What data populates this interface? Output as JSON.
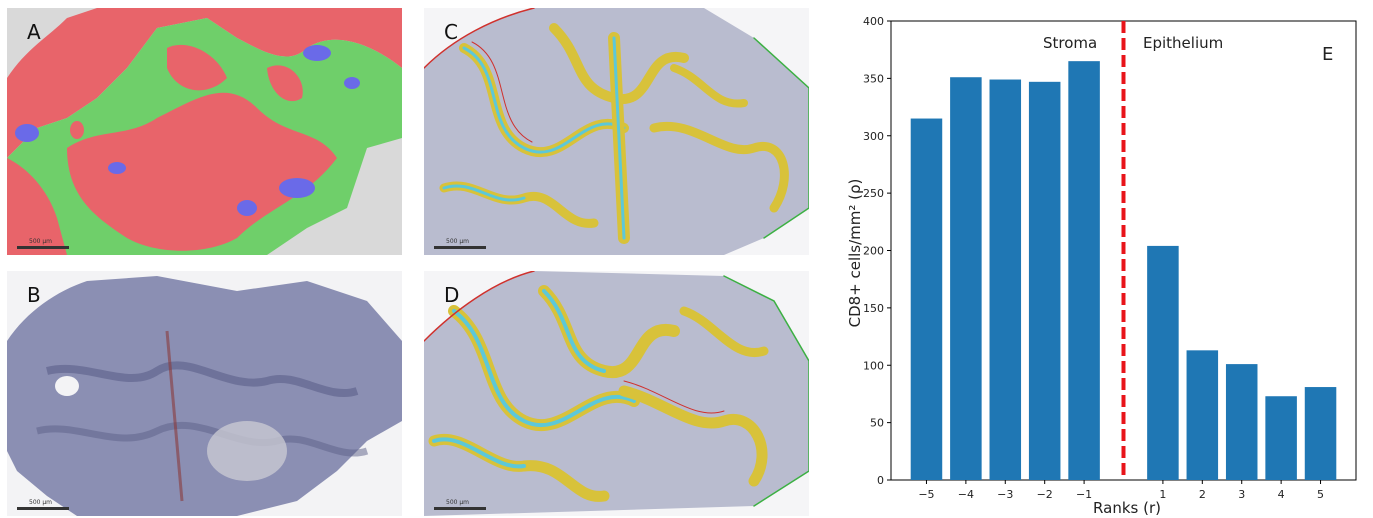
{
  "panels": {
    "A": {
      "label": "A",
      "scale": "500 µm"
    },
    "B": {
      "label": "B",
      "scale": "500 µm"
    },
    "C": {
      "label": "C",
      "scale": "500 µm"
    },
    "D": {
      "label": "D",
      "scale": "500 µm"
    }
  },
  "colors": {
    "epithelium_mask": "#e8646a",
    "stroma_mask": "#6fcf6a",
    "other_mask": "#6a6ae8",
    "background": "#d9d9d9",
    "tissue_stain": "#7a7ea8",
    "ring_yellow": "#d8c23a",
    "ring_cyan": "#5cc8d8",
    "border_red": "#d0312d",
    "border_green": "#3cb043",
    "bar": "#1f77b4",
    "divider": "#e8141a"
  },
  "chart_data": {
    "type": "bar",
    "panel_label": "E",
    "categories": [
      "−5",
      "−4",
      "−3",
      "−2",
      "−1",
      "1",
      "2",
      "3",
      "4",
      "5"
    ],
    "x": [
      -5,
      -4,
      -3,
      -2,
      -1,
      1,
      2,
      3,
      4,
      5
    ],
    "values": [
      315,
      351,
      349,
      347,
      365,
      204,
      113,
      101,
      73,
      81
    ],
    "xlabel": "Ranks (r)",
    "ylabel": "CD8+ cells/mm² (ρ)",
    "ylim": [
      0,
      400
    ],
    "yticks": [
      0,
      50,
      100,
      150,
      200,
      250,
      300,
      350,
      400
    ],
    "annotations": {
      "left": "Stroma",
      "right": "Epithelium"
    },
    "divider_at": 0,
    "grid": false
  }
}
